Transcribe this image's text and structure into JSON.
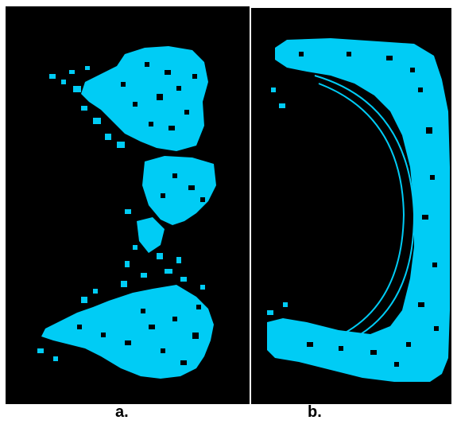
{
  "panels": [
    {
      "id": "a",
      "caption": "a."
    },
    {
      "id": "b",
      "caption": "b."
    }
  ],
  "colors": {
    "background": "#000000",
    "region": "#00ccf5",
    "page": "#ffffff"
  }
}
